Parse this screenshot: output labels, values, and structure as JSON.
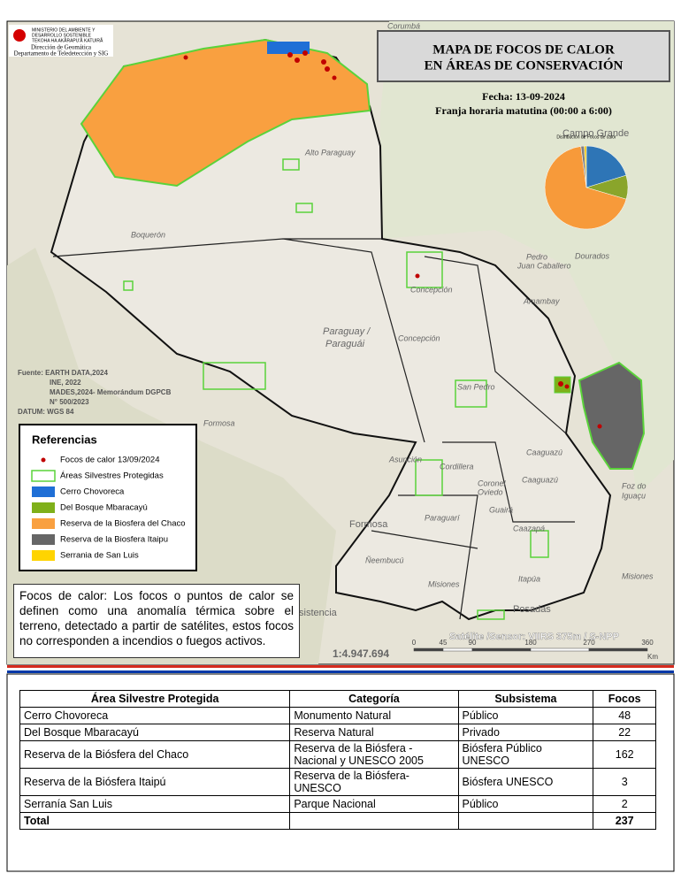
{
  "header": {
    "logo_lines": [
      "MINISTERIO DEL AMBIENTE Y",
      "DESARROLLO SOSTENIBLE",
      "TEKOHA HA AKÃRAPU'Ã KATUIRÃ"
    ],
    "org": "Dirección de Geomática",
    "dept": "Departamento de Teledetección y SIG"
  },
  "title_lines": [
    "MAPA DE FOCOS DE CALOR",
    "EN ÁREAS DE CONSERVACIÓN"
  ],
  "date": "Fecha: 13-09-2024",
  "time_range": "Franja horaria matutina (00:00 a 6:00)",
  "pie": {
    "title": "Distribución de Focos de calor",
    "colors": [
      "#2e75b6",
      "#8aa52b",
      "#f79a3a",
      "#7f7f7f",
      "#f2c811"
    ]
  },
  "sources": [
    "Fuente: EARTH DATA,2024",
    "INE, 2022",
    "MADES,2024- Memorándum DGPCB",
    "N° 500/2023",
    "DATUM: WGS 84"
  ],
  "legend": {
    "title": "Referencias",
    "items": [
      {
        "label": "Focos de calor 13/09/2024",
        "symbol": "point",
        "color": "#c00000"
      },
      {
        "label": "Áreas Silvestres Protegidas",
        "symbol": "outline",
        "color": "#5ad33a"
      },
      {
        "label": "Cerro Chovoreca",
        "symbol": "fill",
        "color": "#1f6fd6"
      },
      {
        "label": "Del Bosque Mbaracayú",
        "symbol": "fill",
        "color": "#7fb01a"
      },
      {
        "label": "Reserva de la Biosfera del Chaco",
        "symbol": "fill",
        "color": "#f9a040"
      },
      {
        "label": "Reserva de la Biosfera Itaipu",
        "symbol": "fill",
        "color": "#666666"
      },
      {
        "label": "Serrania de San Luis",
        "symbol": "fill",
        "color": "#ffd400"
      }
    ]
  },
  "note": "Focos de calor: Los focos o puntos de calor se definen como una anomalía térmica sobre el terreno, detectado a partir de satélites, estos focos no corresponden a incendios o fuegos activos.",
  "satellite": "Satélite /Sensor: VIIRS 375m / S-NPP",
  "scale": "1:4.947.694",
  "scale_ticks": [
    0,
    45,
    90,
    180,
    270,
    360
  ],
  "scale_unit": "Km",
  "map_labels": [
    "Corumbá",
    "Alto Paraguay",
    "Campo Grande",
    "Boquerón",
    "Pedro",
    "Juan Caballero",
    "Dourados",
    "Amambay",
    "Concepción",
    "Paraguay /",
    "Paraguái",
    "Concepción",
    "San Pedro",
    "Formosa",
    "Caaguazú",
    "Asunción",
    "Cordillera",
    "Coronel",
    "Oviedo",
    "Caaguazú",
    "Guairá",
    "Paraguarí",
    "Caazapá",
    "Formosa",
    "Ñeembucú",
    "Misiones",
    "Itapúa",
    "Posadas",
    "Foz do",
    "Iguaçu",
    "Misiones",
    "sistencia"
  ],
  "table": {
    "headers": [
      "Área Silvestre Protegida",
      "Categoría",
      "Subsistema",
      "Focos"
    ],
    "rows": [
      [
        "Cerro Chovoreca",
        "Monumento Natural",
        "Público",
        48
      ],
      [
        "Del Bosque Mbaracayú",
        "Reserva Natural",
        "Privado",
        22
      ],
      [
        "Reserva de la Biósfera del Chaco",
        "Reserva de la Biósfera - Nacional y UNESCO 2005",
        "Biósfera Público UNESCO",
        162
      ],
      [
        "Reserva de la Biósfera Itaipú",
        "Reserva de la Biósfera-UNESCO",
        "Biósfera UNESCO",
        3
      ],
      [
        "Serranía San Luis",
        "Parque Nacional",
        "Público",
        2
      ]
    ],
    "total": [
      "Total",
      237
    ]
  }
}
